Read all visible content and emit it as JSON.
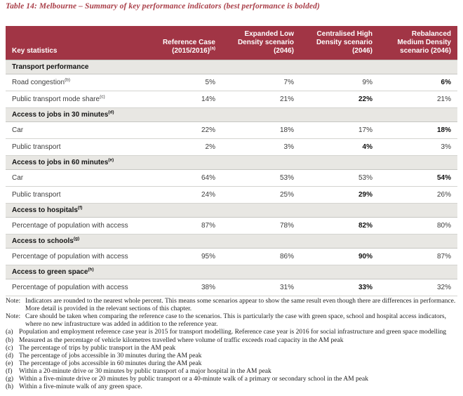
{
  "title": "Table 14: Melbourne – Summary of key performance indicators (best performance is bolded)",
  "colors": {
    "header_bg": "#a13545",
    "header_text": "#ffffff",
    "section_bg": "#e8e7e3",
    "title_red": "#a93e48"
  },
  "table": {
    "header": {
      "key_col": "Key statistics",
      "scenario_cols": [
        {
          "label": "Reference Case (2015/2016)",
          "sup": "(a)"
        },
        {
          "label": "Expanded Low Density scenario (2046)",
          "sup": ""
        },
        {
          "label": "Centralised High Density scenario (2046)",
          "sup": ""
        },
        {
          "label": "Rebalanced Medium Density scenario (2046)",
          "sup": ""
        }
      ]
    },
    "rows": [
      {
        "type": "section",
        "label": "Transport performance",
        "sup": ""
      },
      {
        "type": "data",
        "label": "Road congestion",
        "sup": "(b)",
        "values": [
          "5%",
          "7%",
          "9%",
          "6%"
        ],
        "bold": [
          false,
          false,
          false,
          true
        ]
      },
      {
        "type": "data",
        "label": "Public transport mode share",
        "sup": "(c)",
        "values": [
          "14%",
          "21%",
          "22%",
          "21%"
        ],
        "bold": [
          false,
          false,
          true,
          false
        ]
      },
      {
        "type": "section",
        "label": "Access to jobs in 30 minutes",
        "sup": "(d)"
      },
      {
        "type": "data",
        "label": "Car",
        "sup": "",
        "values": [
          "22%",
          "18%",
          "17%",
          "18%"
        ],
        "bold": [
          false,
          false,
          false,
          true
        ]
      },
      {
        "type": "data",
        "label": "Public transport",
        "sup": "",
        "values": [
          "2%",
          "3%",
          "4%",
          "3%"
        ],
        "bold": [
          false,
          false,
          true,
          false
        ]
      },
      {
        "type": "section",
        "label": "Access to jobs in 60 minutes",
        "sup": "(e)"
      },
      {
        "type": "data",
        "label": "Car",
        "sup": "",
        "values": [
          "64%",
          "53%",
          "53%",
          "54%"
        ],
        "bold": [
          false,
          false,
          false,
          true
        ]
      },
      {
        "type": "data",
        "label": "Public transport",
        "sup": "",
        "values": [
          "24%",
          "25%",
          "29%",
          "26%"
        ],
        "bold": [
          false,
          false,
          true,
          false
        ]
      },
      {
        "type": "section",
        "label": "Access to hospitals",
        "sup": "(f)"
      },
      {
        "type": "data",
        "label": "Percentage of population with access",
        "sup": "",
        "values": [
          "87%",
          "78%",
          "82%",
          "80%"
        ],
        "bold": [
          false,
          false,
          true,
          false
        ]
      },
      {
        "type": "section",
        "label": "Access to schools",
        "sup": "(g)"
      },
      {
        "type": "data",
        "label": "Percentage of population with access",
        "sup": "",
        "values": [
          "95%",
          "86%",
          "90%",
          "87%"
        ],
        "bold": [
          false,
          false,
          true,
          false
        ]
      },
      {
        "type": "section",
        "label": "Access to green space",
        "sup": "(h)"
      },
      {
        "type": "data",
        "label": "Percentage of population with access",
        "sup": "",
        "values": [
          "38%",
          "31%",
          "33%",
          "32%"
        ],
        "bold": [
          false,
          false,
          true,
          false
        ]
      }
    ]
  },
  "notes": [
    {
      "label": "Note:",
      "text": "Indicators are rounded to the nearest whole percent. This means some scenarios appear to show the same result even though there are differences in performance. More detail is provided in the relevant sections of this chapter."
    },
    {
      "label": "Note:",
      "text": "Care should be taken when comparing the reference case to the scenarios. This is particularly the case with green space, school and hospital access indicators, where no new infrastructure was added in addition to the reference year."
    }
  ],
  "footnotes": [
    {
      "label": "(a)",
      "text": "Population and employment reference case year is 2015 for transport modelling. Reference case year is 2016 for social infrastructure and green space modelling"
    },
    {
      "label": "(b)",
      "text": "Measured as the percentage of vehicle kilometres travelled where volume of traffic exceeds road capacity in the AM peak"
    },
    {
      "label": "(c)",
      "text": "The percentage of trips by public transport in the AM peak"
    },
    {
      "label": "(d)",
      "text": "The percentage of jobs accessible in 30 minutes during the AM peak"
    },
    {
      "label": "(e)",
      "text": "The percentage of jobs accessible in 60 minutes during the AM peak"
    },
    {
      "label": "(f)",
      "text": "Within a 20-minute drive or 30 minutes by public transport of a major hospital in the AM peak"
    },
    {
      "label": "(g)",
      "text": "Within a five-minute drive or 20 minutes by public transport or a 40-minute walk of a primary or secondary school in the AM peak"
    },
    {
      "label": "(h)",
      "text": "Within a five-minute walk of any green space."
    }
  ]
}
